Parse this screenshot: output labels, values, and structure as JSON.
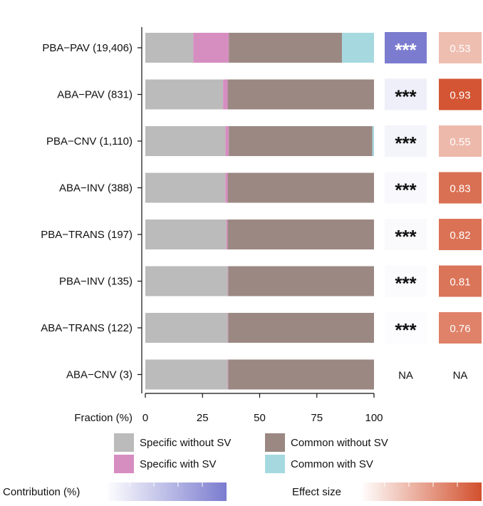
{
  "chart_data": {
    "type": "bar",
    "stacked": true,
    "orientation": "horizontal",
    "categories": [
      "PBA−PAV (19,406)",
      "ABA−PAV (831)",
      "PBA−CNV (1,110)",
      "ABA−INV (388)",
      "PBA−TRANS (197)",
      "PBA−INV (135)",
      "ABA−TRANS (122)",
      "ABA−CNV (3)"
    ],
    "series": [
      {
        "name": "Specific without SV",
        "color": "#bcbbbb",
        "values": [
          21,
          34,
          35,
          35,
          35.5,
          36,
          36,
          36
        ]
      },
      {
        "name": "Specific with SV",
        "color": "#d68dc0",
        "values": [
          15.5,
          2,
          1.5,
          1,
          0.5,
          0.2,
          0.2,
          0.2
        ]
      },
      {
        "name": "Common without SV",
        "color": "#9b8882",
        "values": [
          49.5,
          64,
          62.8,
          64,
          64,
          63.8,
          63.8,
          63.8
        ]
      },
      {
        "name": "Common with SV",
        "color": "#a5d9df",
        "values": [
          14,
          0,
          0.7,
          0,
          0,
          0,
          0,
          0
        ]
      }
    ],
    "xlabel": "Fraction (%)",
    "xlim": [
      0,
      100
    ],
    "xticks": [
      "0",
      "25",
      "50",
      "75",
      "100"
    ],
    "significance": [
      "***",
      "***",
      "***",
      "***",
      "***",
      "***",
      "***",
      "NA"
    ],
    "contribution": [
      1.0,
      0.12,
      0.08,
      0.05,
      0.04,
      0.03,
      0.02,
      null
    ],
    "effect_size": [
      "0.53",
      "0.93",
      "0.55",
      "0.83",
      "0.82",
      "0.81",
      "0.76",
      "NA"
    ],
    "effect_values": [
      0.53,
      0.93,
      0.55,
      0.83,
      0.82,
      0.81,
      0.76,
      null
    ],
    "legend": [
      "Specific without SV",
      "Common without SV",
      "Specific with SV",
      "Common with SV"
    ]
  },
  "colorbars": {
    "contribution_label": "Contribution (%)",
    "effect_label": "Effect size",
    "contribution_color": "#7b7ccf",
    "effect_color": "#d2502d"
  }
}
